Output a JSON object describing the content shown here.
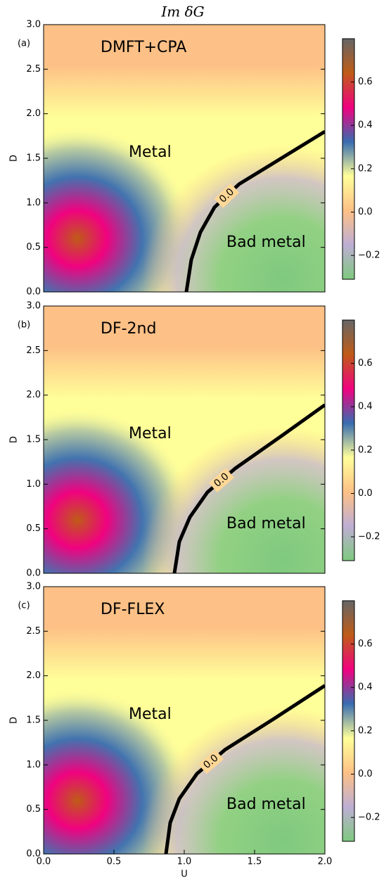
{
  "figure_title": "Im δG",
  "colormap": [
    "#7fc97f",
    "#beaed4",
    "#fdc086",
    "#ffff99",
    "#386cb0",
    "#f0027f",
    "#bf5b17",
    "#666666"
  ],
  "chart_data": [
    {
      "type": "contour",
      "panel_label": "(a)",
      "title": "DMFT+CPA",
      "ylabel": "D",
      "annotations": [
        "Metal",
        "Bad metal"
      ],
      "xlim": [
        0,
        2
      ],
      "ylim": [
        0,
        3
      ],
      "yticks": [
        {
          "value": 0,
          "label": "0.0"
        },
        {
          "value": 0.5,
          "label": "0.5"
        },
        {
          "value": 1,
          "label": "1.0"
        },
        {
          "value": 1.5,
          "label": "1.5"
        },
        {
          "value": 2,
          "label": "2.0"
        },
        {
          "value": 2.5,
          "label": "2.5"
        },
        {
          "value": 3,
          "label": "3.0"
        }
      ],
      "clim": [
        -0.31,
        0.8
      ],
      "cticks": [
        {
          "value": -0.2,
          "label": "−0.2"
        },
        {
          "value": 0,
          "label": "0.0"
        },
        {
          "value": 0.2,
          "label": "0.2"
        },
        {
          "value": 0.4,
          "label": "0.4"
        },
        {
          "value": 0.6,
          "label": "0.6"
        }
      ],
      "contour_label": "0.0",
      "contour_x": [
        1.015,
        1.05,
        1.115,
        1.215,
        1.39,
        1.69,
        2.0
      ],
      "contour_y": [
        0,
        0.36,
        0.67,
        0.95,
        1.21,
        1.5,
        1.8
      ]
    },
    {
      "type": "contour",
      "panel_label": "(b)",
      "title": "DF-2nd",
      "ylabel": "D",
      "annotations": [
        "Metal",
        "Bad metal"
      ],
      "xlim": [
        0,
        2
      ],
      "ylim": [
        0,
        3
      ],
      "yticks": [
        {
          "value": 0,
          "label": "0.0"
        },
        {
          "value": 0.5,
          "label": "0.5"
        },
        {
          "value": 1,
          "label": "1.0"
        },
        {
          "value": 1.5,
          "label": "1.5"
        },
        {
          "value": 2,
          "label": "2.0"
        },
        {
          "value": 2.5,
          "label": "2.5"
        },
        {
          "value": 3,
          "label": "3.0"
        }
      ],
      "clim": [
        -0.31,
        0.8
      ],
      "cticks": [
        {
          "value": -0.2,
          "label": "−0.2"
        },
        {
          "value": 0,
          "label": "0.0"
        },
        {
          "value": 0.2,
          "label": "0.2"
        },
        {
          "value": 0.4,
          "label": "0.4"
        },
        {
          "value": 0.6,
          "label": "0.6"
        }
      ],
      "contour_label": "0.0",
      "contour_x": [
        0.93,
        0.965,
        1.04,
        1.165,
        1.365,
        1.69,
        2.0
      ],
      "contour_y": [
        0,
        0.355,
        0.63,
        0.91,
        1.18,
        1.54,
        1.89
      ]
    },
    {
      "type": "contour",
      "panel_label": "(c)",
      "title": "DF-FLEX",
      "ylabel": "D",
      "xlabel": "U",
      "annotations": [
        "Metal",
        "Bad metal"
      ],
      "xlim": [
        0,
        2
      ],
      "ylim": [
        0,
        3
      ],
      "xticks": [
        {
          "value": 0,
          "label": "0.0"
        },
        {
          "value": 0.5,
          "label": "0.5"
        },
        {
          "value": 1,
          "label": "1.0"
        },
        {
          "value": 1.5,
          "label": "1.5"
        },
        {
          "value": 2,
          "label": "2.0"
        }
      ],
      "yticks": [
        {
          "value": 0,
          "label": "0.0"
        },
        {
          "value": 0.5,
          "label": "0.5"
        },
        {
          "value": 1,
          "label": "1.0"
        },
        {
          "value": 1.5,
          "label": "1.5"
        },
        {
          "value": 2,
          "label": "2.0"
        },
        {
          "value": 2.5,
          "label": "2.5"
        },
        {
          "value": 3,
          "label": "3.0"
        }
      ],
      "clim": [
        -0.31,
        0.8
      ],
      "cticks": [
        {
          "value": -0.2,
          "label": "−0.2"
        },
        {
          "value": 0,
          "label": "0.0"
        },
        {
          "value": 0.2,
          "label": "0.2"
        },
        {
          "value": 0.4,
          "label": "0.4"
        },
        {
          "value": 0.6,
          "label": "0.6"
        }
      ],
      "contour_label": "0.0",
      "contour_x": [
        0.87,
        0.9,
        0.965,
        1.09,
        1.29,
        1.64,
        2.0
      ],
      "contour_y": [
        0,
        0.35,
        0.62,
        0.9,
        1.17,
        1.52,
        1.89
      ]
    }
  ]
}
